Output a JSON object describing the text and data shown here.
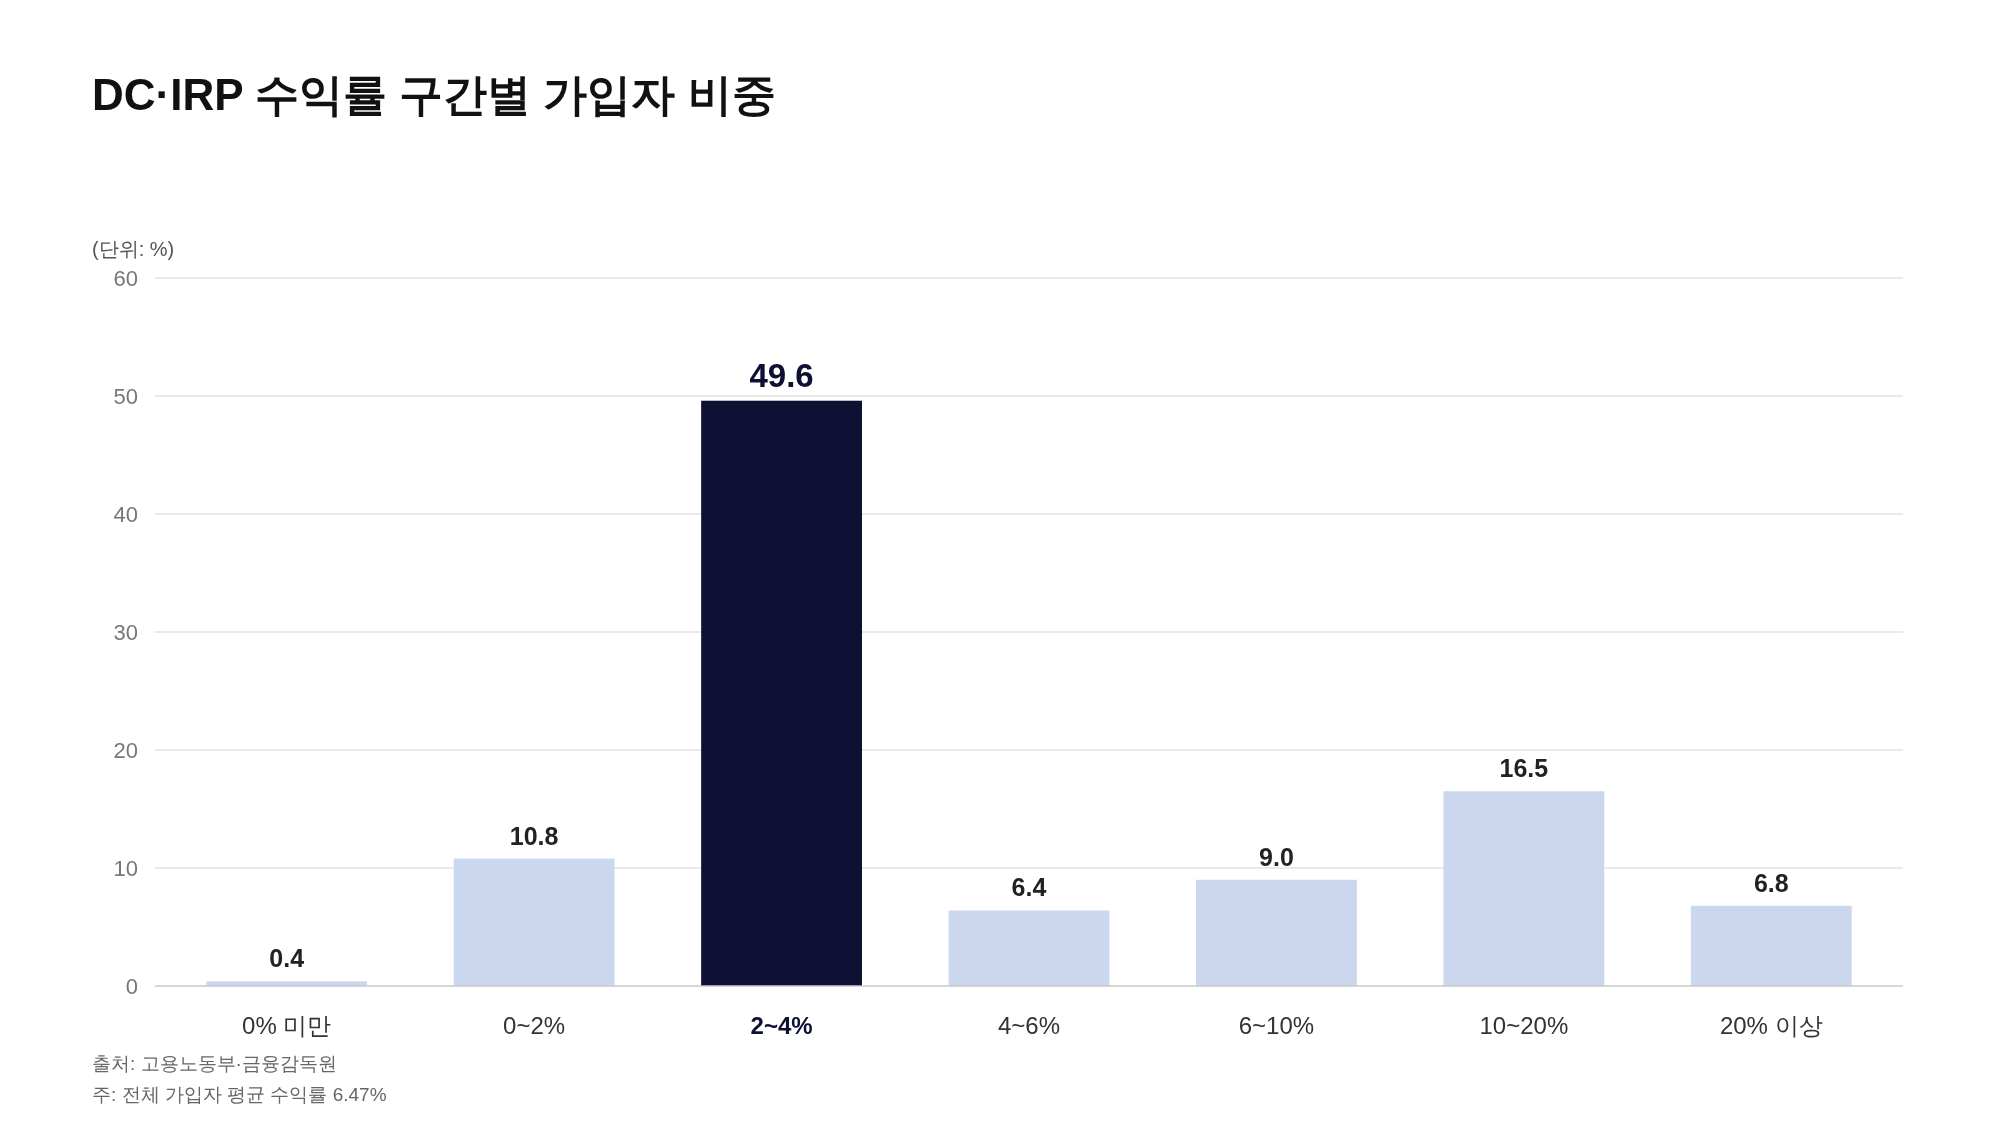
{
  "chart_data": {
    "type": "bar",
    "title": "DC·IRP 수익률 구간별 가입자 비중",
    "ylabel": "(단위: %)",
    "categories": [
      "0% 미만",
      "0~2%",
      "2~4%",
      "4~6%",
      "6~10%",
      "10~20%",
      "20% 이상"
    ],
    "values": [
      0.4,
      10.8,
      49.6,
      6.4,
      9.0,
      16.5,
      6.8
    ],
    "value_labels": [
      "0.4",
      "10.8",
      "49.6",
      "6.4",
      "9.0",
      "16.5",
      "6.8"
    ],
    "colors": [
      "#cbd7ef",
      "#cbd7ef",
      "#0d0f33",
      "#cbd7ef",
      "#cbd7ef",
      "#cbd7ef",
      "#cbd7ef"
    ],
    "ylim": [
      0,
      60
    ],
    "yticks": [
      0,
      10,
      20,
      30,
      40,
      50,
      60
    ],
    "grid": "y",
    "annotations": [
      "출처: 고용노동부·금융감독원",
      "주: 전체 가입자 평균 수익률 6.47%"
    ]
  }
}
